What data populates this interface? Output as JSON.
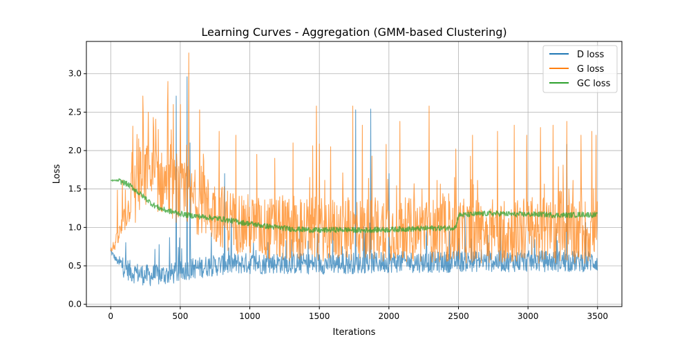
{
  "chart_data": {
    "type": "line",
    "title": "Learning Curves - Aggregation (GMM-based Clustering)",
    "xlabel": "Iterations",
    "ylabel": "Loss",
    "xlim": [
      -175,
      3675
    ],
    "ylim": [
      -0.03,
      3.42
    ],
    "xticks": [
      0,
      500,
      1000,
      1500,
      2000,
      2500,
      3000,
      3500
    ],
    "xtick_labels": [
      "0",
      "500",
      "1000",
      "1500",
      "2000",
      "2500",
      "3000",
      "3500"
    ],
    "yticks": [
      0.0,
      0.5,
      1.0,
      1.5,
      2.0,
      2.5,
      3.0
    ],
    "ytick_labels": [
      "0.0",
      "0.5",
      "1.0",
      "1.5",
      "2.0",
      "2.5",
      "3.0"
    ],
    "grid": true,
    "legend_position": "top-right",
    "series": [
      {
        "name": "D loss",
        "color": "#1f77b4",
        "x": [
          0,
          50,
          100,
          150,
          200,
          250,
          300,
          350,
          400,
          450,
          500,
          550,
          600,
          650,
          700,
          750,
          800,
          850,
          900,
          950,
          1000,
          1100,
          1200,
          1300,
          1400,
          1500,
          1600,
          1700,
          1800,
          1900,
          2000,
          2100,
          2200,
          2300,
          2400,
          2500,
          2600,
          2700,
          2800,
          2900,
          3000,
          3100,
          3200,
          3300,
          3400,
          3500
        ],
        "y": [
          0.69,
          0.55,
          0.48,
          0.42,
          0.4,
          0.38,
          0.37,
          0.38,
          0.39,
          0.4,
          0.42,
          0.45,
          0.47,
          0.48,
          0.5,
          0.5,
          0.52,
          0.52,
          0.53,
          0.53,
          0.53,
          0.53,
          0.54,
          0.53,
          0.53,
          0.53,
          0.53,
          0.53,
          0.54,
          0.54,
          0.55,
          0.55,
          0.55,
          0.55,
          0.55,
          0.56,
          0.56,
          0.56,
          0.56,
          0.56,
          0.56,
          0.56,
          0.56,
          0.56,
          0.56,
          0.56
        ],
        "spikes": [
          [
            470,
            2.71
          ],
          [
            550,
            2.96
          ],
          [
            570,
            2.1
          ],
          [
            820,
            1.7
          ],
          [
            1760,
            2.53
          ],
          [
            1870,
            2.54
          ],
          [
            2000,
            1.7
          ],
          [
            3280,
            2.08
          ]
        ]
      },
      {
        "name": "G loss",
        "color": "#ff7f0e",
        "x": [
          0,
          50,
          100,
          150,
          200,
          250,
          300,
          350,
          400,
          450,
          500,
          550,
          600,
          650,
          700,
          750,
          800,
          850,
          900,
          950,
          1000,
          1100,
          1200,
          1300,
          1400,
          1500,
          1600,
          1700,
          1800,
          1900,
          2000,
          2100,
          2200,
          2300,
          2400,
          2500,
          2600,
          2700,
          2800,
          2900,
          3000,
          3100,
          3200,
          3300,
          3400,
          3500
        ],
        "y": [
          0.69,
          0.85,
          1.1,
          1.35,
          1.55,
          1.65,
          1.65,
          1.6,
          1.55,
          1.5,
          1.45,
          1.4,
          1.35,
          1.3,
          1.25,
          1.2,
          1.15,
          1.1,
          1.08,
          1.05,
          1.02,
          0.98,
          0.98,
          0.98,
          0.98,
          0.98,
          0.97,
          0.97,
          0.98,
          0.98,
          0.98,
          0.97,
          0.96,
          0.96,
          0.95,
          0.95,
          0.95,
          0.95,
          0.95,
          0.95,
          0.95,
          0.95,
          0.95,
          0.95,
          0.95,
          0.95
        ],
        "spikes": [
          [
            230,
            2.71
          ],
          [
            270,
            2.5
          ],
          [
            310,
            2.3
          ],
          [
            410,
            2.9
          ],
          [
            450,
            2.6
          ],
          [
            500,
            2.6
          ],
          [
            560,
            3.27
          ],
          [
            640,
            2.53
          ],
          [
            780,
            2.25
          ],
          [
            900,
            2.2
          ],
          [
            1050,
            1.95
          ],
          [
            1180,
            1.9
          ],
          [
            1310,
            2.1
          ],
          [
            1480,
            2.58
          ],
          [
            1580,
            2.05
          ],
          [
            1740,
            2.58
          ],
          [
            1810,
            2.33
          ],
          [
            1980,
            2.08
          ],
          [
            2080,
            2.38
          ],
          [
            2290,
            2.58
          ],
          [
            2480,
            2.02
          ],
          [
            2600,
            2.2
          ],
          [
            2780,
            2.25
          ],
          [
            2900,
            2.33
          ],
          [
            2990,
            2.2
          ],
          [
            3090,
            2.3
          ],
          [
            3180,
            2.33
          ],
          [
            3280,
            2.38
          ],
          [
            3380,
            2.2
          ],
          [
            3460,
            2.25
          ],
          [
            3490,
            2.2
          ]
        ]
      },
      {
        "name": "GC loss",
        "color": "#2ca02c",
        "x": [
          0,
          50,
          100,
          150,
          200,
          250,
          300,
          350,
          400,
          450,
          500,
          550,
          600,
          650,
          700,
          750,
          800,
          850,
          900,
          950,
          1000,
          1100,
          1200,
          1300,
          1400,
          1500,
          1600,
          1700,
          1800,
          1900,
          2000,
          2100,
          2200,
          2300,
          2400,
          2480,
          2500,
          2600,
          2700,
          2800,
          2900,
          3000,
          3100,
          3200,
          3300,
          3400,
          3500
        ],
        "y": [
          1.61,
          1.61,
          1.58,
          1.53,
          1.45,
          1.38,
          1.3,
          1.25,
          1.22,
          1.2,
          1.18,
          1.16,
          1.15,
          1.14,
          1.13,
          1.12,
          1.11,
          1.09,
          1.08,
          1.06,
          1.05,
          1.02,
          1.0,
          0.98,
          0.97,
          0.96,
          0.97,
          0.97,
          0.96,
          0.97,
          0.97,
          0.98,
          0.98,
          0.99,
          0.99,
          1.0,
          1.16,
          1.17,
          1.18,
          1.18,
          1.17,
          1.17,
          1.17,
          1.16,
          1.16,
          1.17,
          1.16
        ],
        "spikes": []
      }
    ]
  }
}
